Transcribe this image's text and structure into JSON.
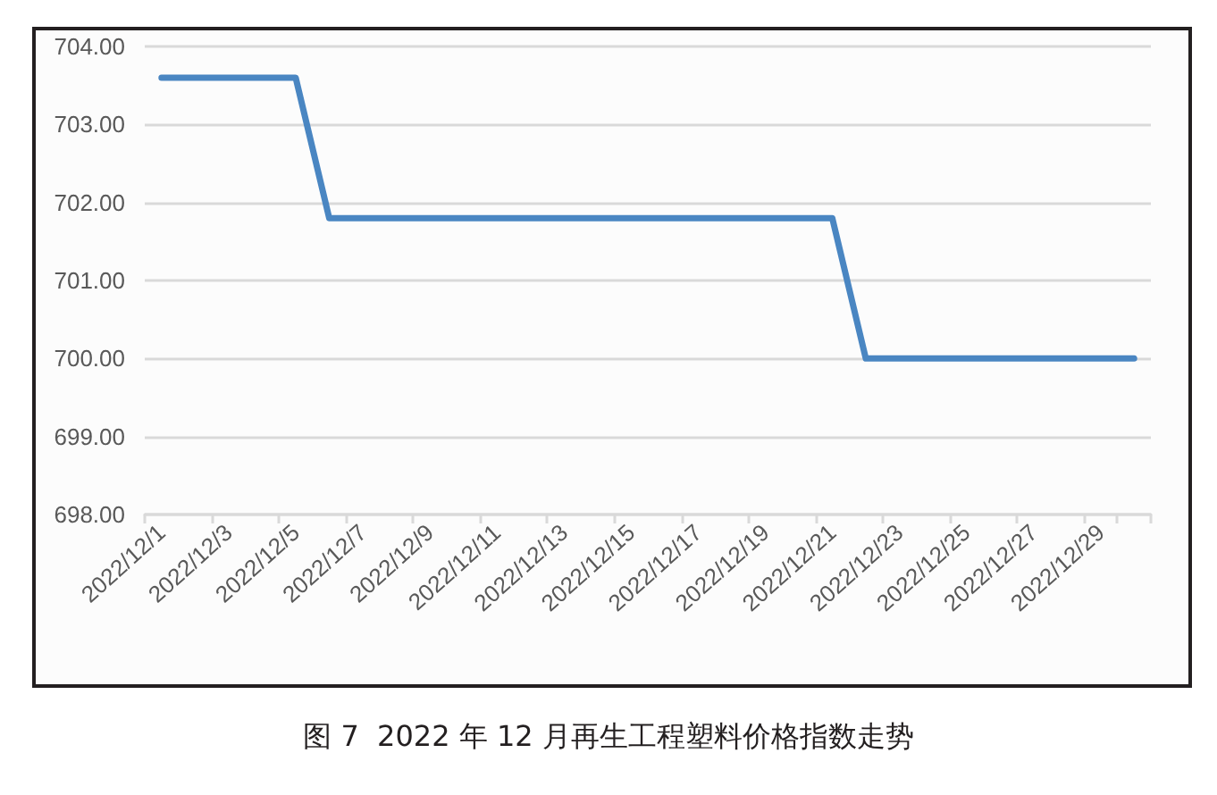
{
  "chart_data": {
    "type": "line",
    "annotations": [
      "图 7  2022 年 12 月再生工程塑料价格指数走势"
    ],
    "categories": [
      "2022/12/1",
      null,
      "2022/12/3",
      null,
      "2022/12/5",
      null,
      "2022/12/7",
      null,
      "2022/12/9",
      null,
      "2022/12/11",
      null,
      "2022/12/13",
      null,
      "2022/12/15",
      null,
      "2022/12/17",
      null,
      "2022/12/19",
      null,
      "2022/12/21",
      null,
      "2022/12/23",
      null,
      "2022/12/25",
      null,
      "2022/12/27",
      null,
      "2022/12/29",
      null
    ],
    "series": [
      {
        "color": "#4a86c2",
        "values": [
          703.6,
          703.6,
          703.6,
          703.6,
          703.6,
          701.8,
          701.8,
          701.8,
          701.8,
          701.8,
          701.8,
          701.8,
          701.8,
          701.8,
          701.8,
          701.8,
          701.8,
          701.8,
          701.8,
          701.8,
          701.8,
          700,
          700,
          700,
          700,
          700,
          700,
          700,
          700,
          700
        ]
      }
    ],
    "ylim": [
      698,
      704
    ],
    "yticks": [
      {
        "value": 698,
        "label": "698.00"
      },
      {
        "value": 699,
        "label": "699.00"
      },
      {
        "value": 700,
        "label": "700.00"
      },
      {
        "value": 701,
        "label": "701.00"
      },
      {
        "value": 702,
        "label": "702.00"
      },
      {
        "value": 703,
        "label": "703.00"
      },
      {
        "value": 704,
        "label": "704.00"
      }
    ],
    "grid": "y",
    "marker": "none",
    "line_style": "solid"
  }
}
